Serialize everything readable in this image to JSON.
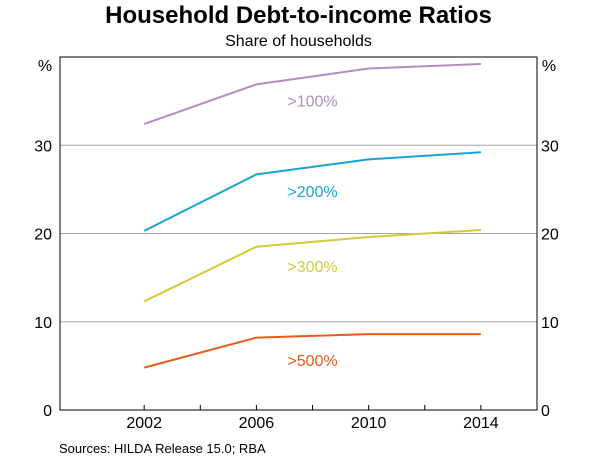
{
  "title": "Household Debt-to-income Ratios",
  "subtitle": "Share of households",
  "source": "Sources:   HILDA Release 15.0; RBA",
  "chart_data": {
    "type": "line",
    "title": "Household Debt-to-income Ratios",
    "subtitle": "Share of households",
    "x": [
      2002,
      2006,
      2010,
      2014
    ],
    "x_tick_labels": [
      "2002",
      "2006",
      "2010",
      "2014"
    ],
    "xlim": [
      1999,
      2016
    ],
    "ylim": [
      0,
      40
    ],
    "y_ticks": [
      0,
      10,
      20,
      30
    ],
    "y_unit_label": "%",
    "y_unit_label_right": "%",
    "grid": "horizontal",
    "series": [
      {
        "name": ">100%",
        "color": "#b48cc2",
        "values": [
          32.4,
          36.9,
          38.7,
          39.2
        ]
      },
      {
        "name": ">200%",
        "color": "#1aa3d9",
        "values": [
          20.3,
          26.7,
          28.4,
          29.2
        ]
      },
      {
        "name": ">300%",
        "color": "#d4c93a",
        "values": [
          12.3,
          18.5,
          19.6,
          20.4
        ]
      },
      {
        "name": ">500%",
        "color": "#ea5a1a",
        "values": [
          4.8,
          8.2,
          8.6,
          8.6
        ]
      }
    ]
  }
}
